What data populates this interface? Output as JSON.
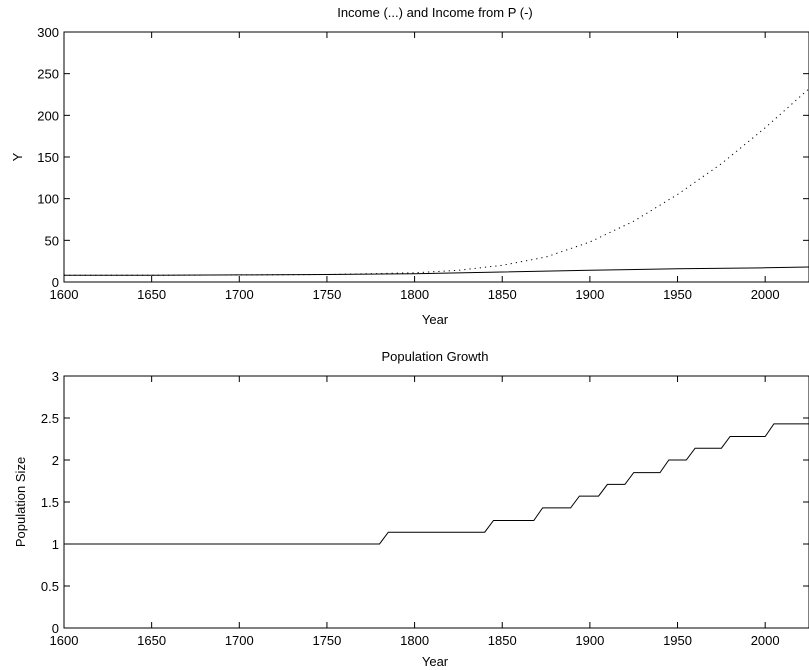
{
  "chart_data": [
    {
      "type": "line",
      "title": "Income (...) and Income from P (-)",
      "xlabel": "Year",
      "ylabel": "Y",
      "xlim": [
        1600,
        2025
      ],
      "ylim": [
        0,
        300
      ],
      "xticks": [
        1600,
        1650,
        1700,
        1750,
        1800,
        1850,
        1900,
        1950,
        2000
      ],
      "yticks": [
        0,
        50,
        100,
        150,
        200,
        250,
        300
      ],
      "grid": false,
      "series": [
        {
          "style": "dotted",
          "x": [
            1600,
            1650,
            1700,
            1750,
            1775,
            1800,
            1825,
            1850,
            1875,
            1900,
            1925,
            1950,
            1975,
            2000,
            2025
          ],
          "y": [
            8,
            8,
            8.5,
            9,
            10,
            11,
            14,
            20,
            30,
            48,
            73,
            105,
            142,
            185,
            232
          ]
        },
        {
          "style": "solid",
          "x": [
            1600,
            1650,
            1700,
            1750,
            1800,
            1850,
            1900,
            1950,
            2000,
            2025
          ],
          "y": [
            8,
            8,
            8.5,
            9,
            10,
            12,
            14,
            16,
            17,
            18
          ]
        }
      ]
    },
    {
      "type": "line",
      "title": "Population Growth",
      "xlabel": "Year",
      "ylabel": "Population Size",
      "xlim": [
        1600,
        2025
      ],
      "ylim": [
        0,
        3
      ],
      "xticks": [
        1600,
        1650,
        1700,
        1750,
        1800,
        1850,
        1900,
        1950,
        2000
      ],
      "yticks": [
        0,
        0.5,
        1,
        1.5,
        2,
        2.5,
        3
      ],
      "yticklabels": [
        "0",
        "0.5",
        "1",
        "1.5",
        "2",
        "2.5",
        "3"
      ],
      "grid": false,
      "series": [
        {
          "style": "solid-step",
          "x": [
            1600,
            1780,
            1785,
            1840,
            1845,
            1868,
            1873,
            1889,
            1894,
            1905,
            1910,
            1920,
            1925,
            1940,
            1945,
            1955,
            1960,
            1975,
            1980,
            2000,
            2005,
            2025
          ],
          "y": [
            1,
            1,
            1.14,
            1.14,
            1.28,
            1.28,
            1.43,
            1.43,
            1.57,
            1.57,
            1.71,
            1.71,
            1.85,
            1.85,
            2.0,
            2.0,
            2.14,
            2.14,
            2.28,
            2.28,
            2.43,
            2.43
          ]
        }
      ]
    }
  ]
}
